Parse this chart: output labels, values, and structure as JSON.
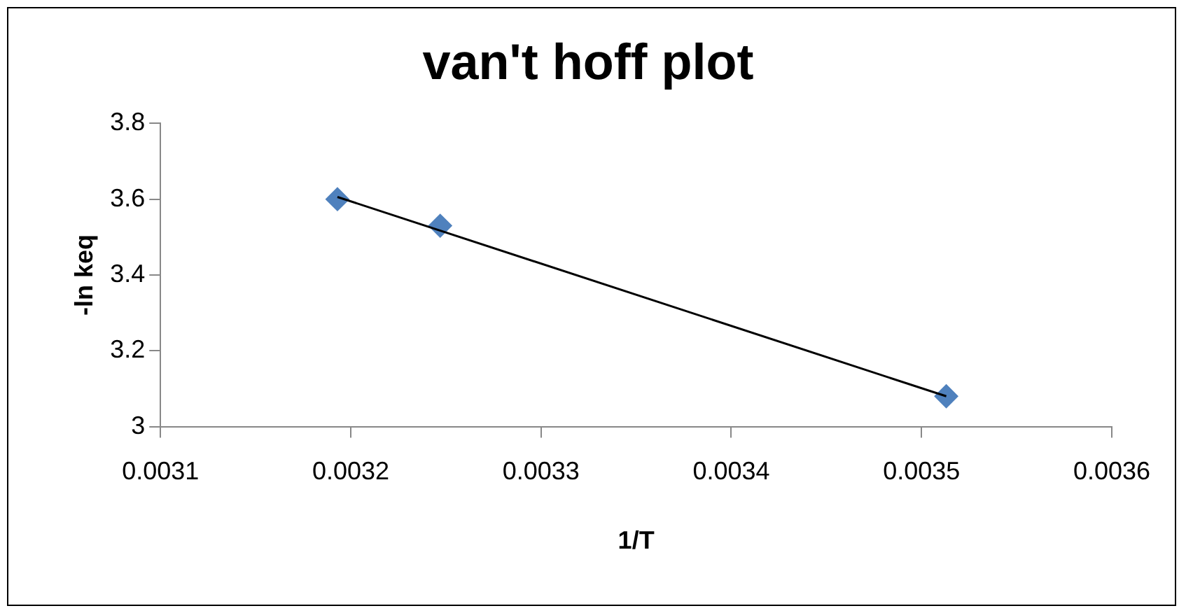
{
  "chart_data": {
    "type": "scatter",
    "title": "van't hoff plot",
    "xlabel": "1/T",
    "ylabel": "-ln keq",
    "xlim": [
      0.0031,
      0.0036
    ],
    "xticks": [
      0.0031,
      0.0032,
      0.0033,
      0.0034,
      0.0035,
      0.0036
    ],
    "ylim": [
      3,
      3.8
    ],
    "yticks": [
      3,
      3.2,
      3.4,
      3.6,
      3.8
    ],
    "grid": false,
    "legend": false,
    "marker": "diamond",
    "series": [
      {
        "color": "#4f81bd",
        "x": [
          0.003193,
          0.003247,
          0.003513
        ],
        "values": [
          3.6,
          3.53,
          3.08
        ]
      },
      {
        "type": "line",
        "color": "#000000",
        "marker": "none",
        "x": [
          0.003193,
          0.003513
        ],
        "values": [
          3.606,
          3.08
        ]
      }
    ]
  }
}
